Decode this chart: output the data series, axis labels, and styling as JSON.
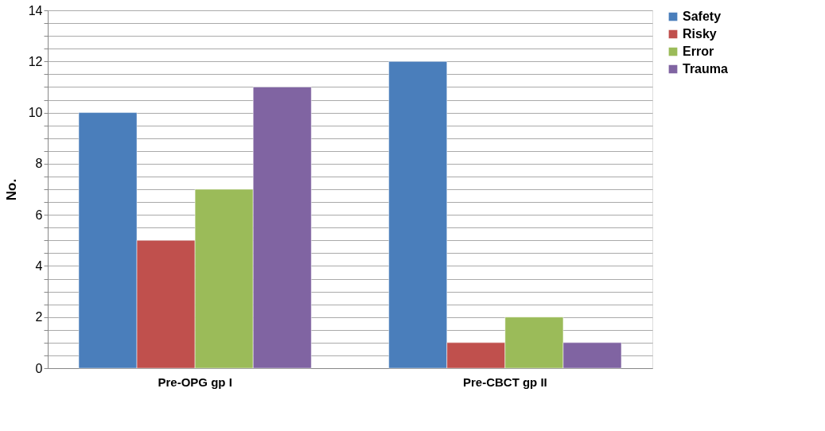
{
  "chart_data": {
    "type": "bar",
    "ylabel": "No.",
    "categories": [
      "Pre-OPG gp I",
      "Pre-CBCT gp II"
    ],
    "series": [
      {
        "name": "Safety",
        "color": "#4a7ebb",
        "values": [
          10,
          12
        ]
      },
      {
        "name": "Risky",
        "color": "#c0504d",
        "values": [
          5,
          1
        ]
      },
      {
        "name": "Error",
        "color": "#9bbb59",
        "values": [
          7,
          2
        ]
      },
      {
        "name": "Trauma",
        "color": "#8064a2",
        "values": [
          11,
          1
        ]
      }
    ],
    "ylim": [
      0,
      14
    ],
    "yticks": [
      0,
      {
        "value": 0.5,
        "label": null
      },
      {
        "value": 1,
        "label": null
      },
      {
        "value": 1.5,
        "label": null
      },
      2,
      {
        "value": 2.5,
        "label": null
      },
      {
        "value": 3,
        "label": null
      },
      {
        "value": 3.5,
        "label": null
      },
      4,
      {
        "value": 4.5,
        "label": null
      },
      {
        "value": 5,
        "label": null
      },
      {
        "value": 5.5,
        "label": null
      },
      6,
      {
        "value": 6.5,
        "label": null
      },
      {
        "value": 7,
        "label": null
      },
      {
        "value": 7.5,
        "label": null
      },
      8,
      {
        "value": 8.5,
        "label": null
      },
      {
        "value": 9,
        "label": null
      },
      {
        "value": 9.5,
        "label": null
      },
      10,
      {
        "value": 10.5,
        "label": null
      },
      {
        "value": 11,
        "label": null
      },
      {
        "value": 11.5,
        "label": null
      },
      12,
      {
        "value": 12.5,
        "label": null
      },
      {
        "value": 13,
        "label": null
      },
      {
        "value": 13.5,
        "label": null
      },
      14
    ],
    "grid": true,
    "legend": "right"
  }
}
